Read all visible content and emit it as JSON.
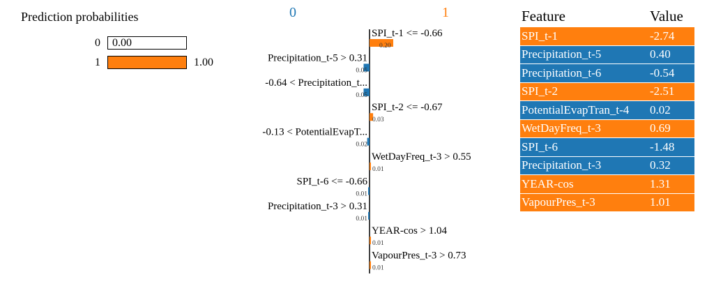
{
  "prediction": {
    "title": "Prediction probabilities",
    "rows": [
      {
        "label": "0",
        "value": 0.0,
        "display": "0.00"
      },
      {
        "label": "1",
        "value": 1.0,
        "display": "1.00"
      }
    ]
  },
  "colors": {
    "class0": "#1f77b4",
    "class1": "#ff7f0e"
  },
  "chart_data": {
    "type": "bar",
    "class_labels": [
      "0",
      "1"
    ],
    "bars": [
      {
        "label": "SPI_t-1 <= -0.66",
        "value": 0.2,
        "value_label": "0.20",
        "class": "1"
      },
      {
        "label": "Precipitation_t-5 > 0.31",
        "value": 0.05,
        "value_label": "0.05",
        "class": "0"
      },
      {
        "label": "-0.64 < Precipitation_t...",
        "value": 0.05,
        "value_label": "0.05",
        "class": "0"
      },
      {
        "label": "SPI_t-2 <= -0.67",
        "value": 0.03,
        "value_label": "0.03",
        "class": "1"
      },
      {
        "label": "-0.13 < PotentialEvapT...",
        "value": 0.02,
        "value_label": "0.02",
        "class": "0"
      },
      {
        "label": "WetDayFreq_t-3 > 0.55",
        "value": 0.01,
        "value_label": "0.01",
        "class": "1"
      },
      {
        "label": "SPI_t-6 <= -0.66",
        "value": 0.01,
        "value_label": "0.01",
        "class": "0"
      },
      {
        "label": "Precipitation_t-3 > 0.31",
        "value": 0.01,
        "value_label": "0.01",
        "class": "0"
      },
      {
        "label": "YEAR-cos > 1.04",
        "value": 0.01,
        "value_label": "0.01",
        "class": "1"
      },
      {
        "label": "VapourPres_t-3 > 0.73",
        "value": 0.01,
        "value_label": "0.01",
        "class": "1"
      }
    ]
  },
  "table": {
    "headers": [
      "Feature",
      "Value"
    ],
    "rows": [
      {
        "feature": "SPI_t-1",
        "value": "-2.74",
        "class": "1"
      },
      {
        "feature": "Precipitation_t-5",
        "value": "0.40",
        "class": "0"
      },
      {
        "feature": "Precipitation_t-6",
        "value": "-0.54",
        "class": "0"
      },
      {
        "feature": "SPI_t-2",
        "value": "-2.51",
        "class": "1"
      },
      {
        "feature": "PotentialEvapTran_t-4",
        "value": "0.02",
        "class": "0"
      },
      {
        "feature": "WetDayFreq_t-3",
        "value": "0.69",
        "class": "1"
      },
      {
        "feature": "SPI_t-6",
        "value": "-1.48",
        "class": "0"
      },
      {
        "feature": "Precipitation_t-3",
        "value": "0.32",
        "class": "0"
      },
      {
        "feature": "YEAR-cos",
        "value": "1.31",
        "class": "1"
      },
      {
        "feature": "VapourPres_t-3",
        "value": "1.01",
        "class": "1"
      }
    ]
  }
}
